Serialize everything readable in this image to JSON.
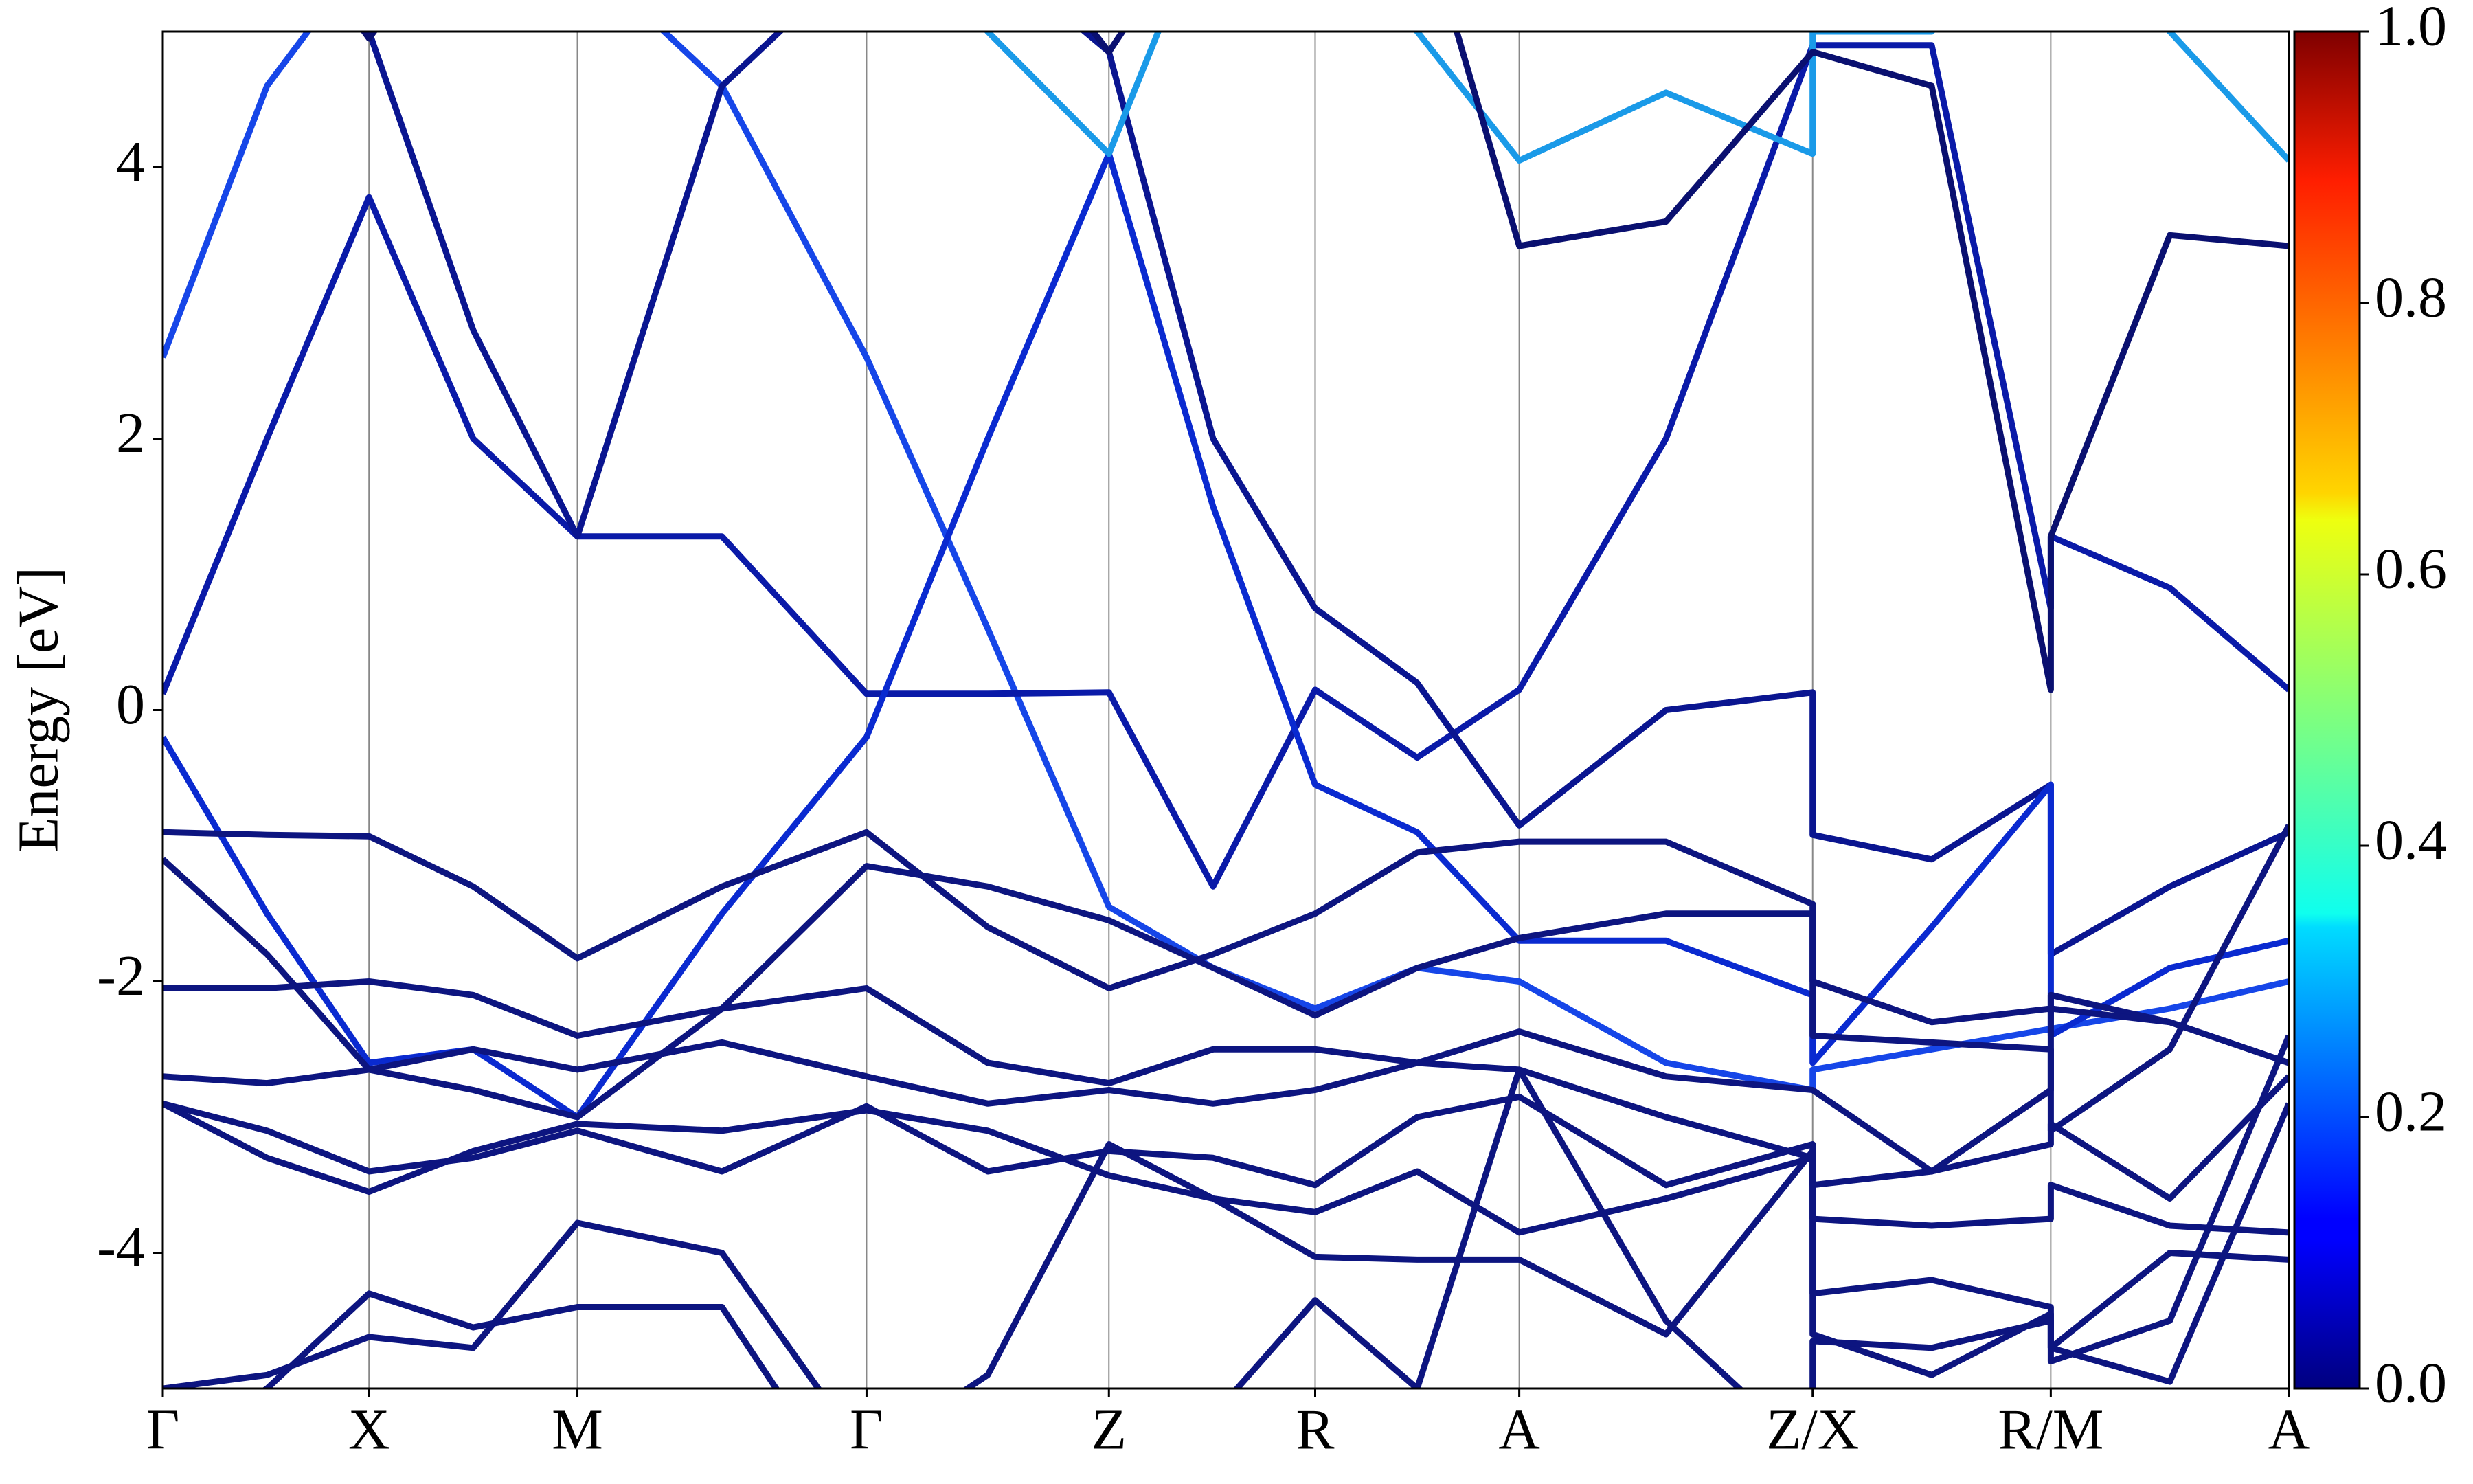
{
  "chart_data": {
    "type": "line",
    "y_label": "Energy [eV]",
    "xlim": [
      0,
      1
    ],
    "ylim": [
      -5,
      5
    ],
    "yticks": [
      -4,
      -2,
      0,
      2,
      4
    ],
    "xticks": [
      {
        "value": 0,
        "label": "Γ"
      },
      {
        "value": 0.097,
        "label": "X"
      },
      {
        "value": 0.195,
        "label": "M"
      },
      {
        "value": 0.331,
        "label": "Γ"
      },
      {
        "value": 0.445,
        "label": "Z"
      },
      {
        "value": 0.542,
        "label": "R"
      },
      {
        "value": 0.638,
        "label": "A"
      },
      {
        "value": 0.776,
        "label": "Z/X"
      },
      {
        "value": 0.888,
        "label": "R/M"
      },
      {
        "value": 1,
        "label": "A"
      }
    ],
    "grid": true,
    "x": [
      0,
      0.049,
      0.097,
      0.146,
      0.195,
      0.263,
      0.331,
      0.388,
      0.445,
      0.494,
      0.542,
      0.59,
      0.638,
      0.707,
      0.776,
      0.776,
      0.832,
      0.888,
      0.888,
      0.944,
      1
    ],
    "series": [
      {
        "color": "#1646e8",
        "values": [
          2.6,
          4.6,
          5.6,
          5.6,
          5.6,
          4.6,
          2.6,
          0.6,
          -1.45,
          -1.9,
          -2.2,
          -1.9,
          -2.0,
          -2.6,
          -2.8,
          -2.65,
          -2.5,
          -2.35,
          -2.35,
          -2.2,
          -2.0
        ]
      },
      {
        "color": "#0a1aa8",
        "values": [
          0.12,
          2.0,
          3.78,
          2.0,
          1.28,
          1.28,
          0.12,
          0.12,
          0.13,
          -1.3,
          0.15,
          -0.35,
          0.15,
          2.0,
          4.9,
          4.9,
          4.9,
          0.75,
          1.28,
          0.9,
          0.15
        ]
      },
      {
        "color": "#0a1590",
        "values": [
          5.6,
          5.2,
          5.0,
          2.8,
          1.28,
          4.6,
          5.6,
          5.6,
          4.85,
          2.0,
          0.75,
          0.2,
          -0.85,
          0.0,
          0.13,
          -0.92,
          -1.1,
          -0.55,
          -1.8,
          -1.3,
          -0.9
        ]
      },
      {
        "color": "#0a2ad0",
        "values": [
          -0.2,
          -1.5,
          -2.6,
          -2.5,
          -3.0,
          -1.5,
          -0.2,
          2.0,
          4.1,
          1.5,
          -0.55,
          -0.9,
          -1.7,
          -1.7,
          -2.1,
          -2.6,
          -1.6,
          -0.55,
          -2.4,
          -1.9,
          -1.7
        ]
      },
      {
        "color": "#0d1580",
        "values": [
          -0.9,
          -0.92,
          -0.93,
          -1.3,
          -1.83,
          -1.3,
          -0.9,
          -1.6,
          -2.05,
          -1.8,
          -1.5,
          -1.05,
          -0.97,
          -0.97,
          -1.43,
          -2.0,
          -2.3,
          -2.2,
          -2.1,
          -2.3,
          -2.6
        ]
      },
      {
        "color": "#0d1580",
        "values": [
          -1.1,
          -1.8,
          -2.65,
          -2.8,
          -3.0,
          -2.2,
          -1.15,
          -1.3,
          -1.55,
          -1.9,
          -2.25,
          -1.9,
          -1.68,
          -1.5,
          -1.5,
          -2.4,
          -2.45,
          -2.5,
          -3.1,
          -2.5,
          -0.85
        ]
      },
      {
        "color": "#0d1580",
        "values": [
          -2.05,
          -2.05,
          -2.0,
          -2.1,
          -2.4,
          -2.2,
          -2.05,
          -2.6,
          -2.75,
          -2.5,
          -2.5,
          -2.6,
          -2.37,
          -2.7,
          -2.8,
          -2.8,
          -3.4,
          -2.8,
          -2.2,
          -2.3,
          -2.6
        ]
      },
      {
        "color": "#0d1580",
        "values": [
          -2.7,
          -2.75,
          -2.65,
          -2.5,
          -2.65,
          -2.45,
          -2.7,
          -2.9,
          -2.8,
          -2.9,
          -2.8,
          -2.6,
          -2.65,
          -3.0,
          -3.3,
          -3.5,
          -3.4,
          -3.2,
          -3.05,
          -3.6,
          -2.7
        ]
      },
      {
        "color": "#0d1580",
        "values": [
          -2.9,
          -3.1,
          -3.4,
          -3.3,
          -3.1,
          -3.4,
          -2.92,
          -3.4,
          -3.25,
          -3.3,
          -3.5,
          -3.0,
          -2.85,
          -3.5,
          -3.2,
          -3.75,
          -3.8,
          -3.75,
          -3.5,
          -3.8,
          -3.85
        ]
      },
      {
        "color": "#0d1580",
        "values": [
          -2.9,
          -3.3,
          -3.55,
          -3.25,
          -3.05,
          -3.1,
          -2.95,
          -3.1,
          -3.43,
          -3.6,
          -3.7,
          -3.4,
          -3.85,
          -3.6,
          -3.3,
          -4.3,
          -4.2,
          -4.4,
          -4.7,
          -4.0,
          -4.05
        ]
      },
      {
        "color": "#0d1580",
        "values": [
          -5.0,
          -4.9,
          -4.62,
          -4.7,
          -3.78,
          -4.0,
          -5.5,
          -4.9,
          -3.2,
          -3.6,
          -4.03,
          -4.05,
          -4.05,
          -4.6,
          -3.25,
          -4.6,
          -4.9,
          -4.45,
          -4.8,
          -4.5,
          -2.4
        ]
      },
      {
        "color": "#0d1580",
        "values": [
          -5.5,
          -5.0,
          -4.3,
          -4.55,
          -4.4,
          -4.4,
          -6,
          -6,
          -6,
          -5.2,
          -4.35,
          -5.0,
          -2.65,
          -4.5,
          -5.5,
          -4.65,
          -4.7,
          -4.5,
          -4.7,
          -4.95,
          -2.9
        ]
      },
      {
        "color": "#1a9ae8",
        "values": [
          6,
          6,
          6,
          6,
          6,
          6,
          6,
          5,
          4.1,
          6,
          6,
          5,
          4.05,
          4.55,
          4.1,
          5,
          5,
          6,
          6,
          5,
          4.05
        ]
      },
      {
        "color": "#0a1070",
        "values": [
          6,
          6,
          4.95,
          6,
          6,
          6,
          6,
          6,
          4.85,
          6,
          6,
          6,
          3.42,
          3.6,
          4.85,
          4.85,
          4.6,
          0.15,
          1.28,
          3.5,
          3.42
        ]
      }
    ],
    "colorbar": {
      "colormap": "jet",
      "lim": [
        0,
        1
      ],
      "ticks": [
        {
          "value": 0,
          "label": "0.0"
        },
        {
          "value": 0.2,
          "label": "0.2"
        },
        {
          "value": 0.4,
          "label": "0.4"
        },
        {
          "value": 0.6,
          "label": "0.6"
        },
        {
          "value": 0.8,
          "label": "0.8"
        },
        {
          "value": 1,
          "label": "1.0"
        }
      ]
    }
  }
}
